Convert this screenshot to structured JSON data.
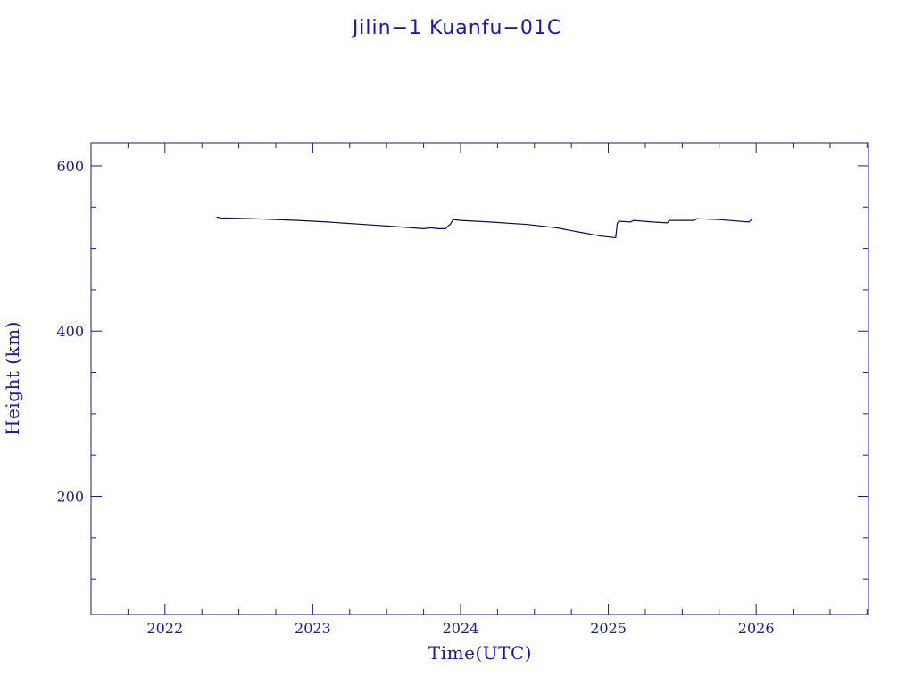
{
  "chart_data": {
    "type": "line",
    "title": "Jilin−1 Kuanfu−01C",
    "xlabel": "Time(UTC)",
    "ylabel": "Height (km)",
    "xlim": [
      2021.5,
      2026.76
    ],
    "ylim": [
      57,
      628
    ],
    "x_major_ticks": [
      2022,
      2023,
      2024,
      2025,
      2026
    ],
    "x_tick_labels": [
      "2022",
      "2023",
      "2024",
      "2025",
      "2026"
    ],
    "y_major_ticks": [
      200,
      400,
      600
    ],
    "y_tick_labels": [
      "200",
      "400",
      "600"
    ],
    "y_minor_step": 50,
    "x_minor_step": 0.25,
    "grid": false,
    "color": "#0a0a5a",
    "series": [
      {
        "x": [
          2022.35,
          2022.38,
          2022.6,
          2022.9,
          2023.1,
          2023.35,
          2023.6,
          2023.75,
          2023.8,
          2023.85,
          2023.9,
          2023.92,
          2023.93,
          2023.94,
          2023.95,
          2024.0,
          2024.2,
          2024.45,
          2024.65,
          2024.8,
          2024.95,
          2025.05,
          2025.06,
          2025.07,
          2025.15,
          2025.17,
          2025.3,
          2025.4,
          2025.41,
          2025.5,
          2025.58,
          2025.6,
          2025.75,
          2025.95,
          2025.97
        ],
        "y": [
          538,
          537,
          536,
          534,
          532,
          529,
          526,
          524,
          525,
          524,
          524,
          528,
          529,
          532,
          535,
          534,
          532,
          529,
          525,
          520,
          515,
          513,
          530,
          533,
          532,
          534,
          532,
          531,
          534,
          534,
          534,
          536,
          535,
          532,
          535
        ]
      }
    ]
  }
}
